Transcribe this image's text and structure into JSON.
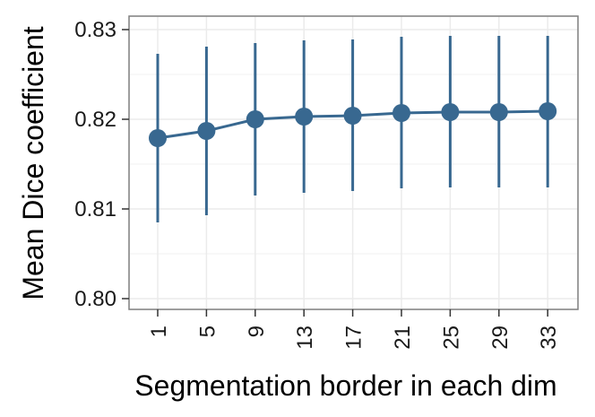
{
  "chart_data": {
    "type": "line",
    "title": "",
    "xlabel": "Segmentation border in each dim",
    "ylabel": "Mean Dice coefficient",
    "x": [
      "1",
      "5",
      "9",
      "13",
      "17",
      "21",
      "25",
      "29",
      "33"
    ],
    "series": [
      {
        "values": [
          0.8179,
          0.8187,
          0.82,
          0.8203,
          0.8204,
          0.8207,
          0.8208,
          0.8208,
          0.8209
        ],
        "error_low": [
          0.8085,
          0.8093,
          0.8115,
          0.8118,
          0.812,
          0.8123,
          0.8124,
          0.8124,
          0.8124
        ],
        "error_high": [
          0.8273,
          0.8281,
          0.8285,
          0.8288,
          0.8289,
          0.8292,
          0.8293,
          0.8293,
          0.8293
        ],
        "color": "#386890"
      }
    ],
    "yticks": [
      "0.80",
      "0.81",
      "0.82",
      "0.83"
    ],
    "ytick_values": [
      0.8,
      0.81,
      0.82,
      0.83
    ],
    "ylim": [
      0.7988,
      0.8315
    ],
    "grid": true,
    "legend": "none",
    "panel_border_color": "#7f7f7f",
    "grid_color": "#ebebeb"
  }
}
